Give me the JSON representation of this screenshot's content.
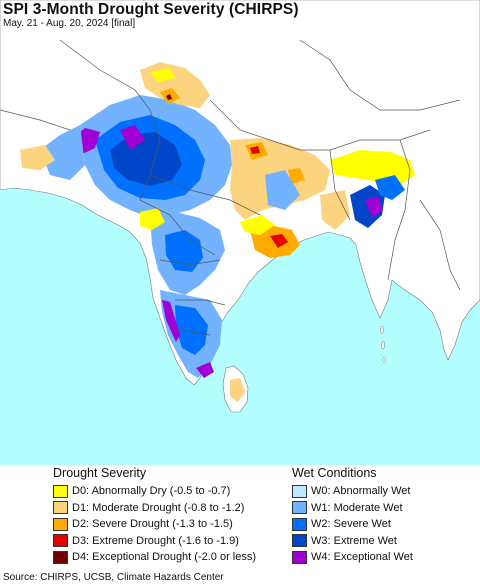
{
  "header": {
    "title": "SPI 3-Month Drought Severity (CHIRPS)",
    "subtitle": "May. 21 - Aug. 20, 2024 [final]"
  },
  "legend": {
    "drought": {
      "heading": "Drought Severity",
      "items": [
        {
          "label": "D0: Abnormally Dry (-0.5 to -0.7)",
          "color": "#ffff00"
        },
        {
          "label": "D1: Moderate Drought (-0.8 to -1.2)",
          "color": "#fcd37f"
        },
        {
          "label": "D2: Severe Drought (-1.3 to -1.5)",
          "color": "#ffaa00"
        },
        {
          "label": "D3: Extreme Drought (-1.6 to -1.9)",
          "color": "#e60000"
        },
        {
          "label": "D4: Exceptional Drought (-2.0 or less)",
          "color": "#730000"
        }
      ]
    },
    "wet": {
      "heading": "Wet Conditions",
      "items": [
        {
          "label": "W0: Abnormally Wet",
          "color": "#bee8ff"
        },
        {
          "label": "W1: Moderate Wet",
          "color": "#73b2ff"
        },
        {
          "label": "W2: Severe Wet",
          "color": "#0070ff"
        },
        {
          "label": "W3: Extreme Wet",
          "color": "#0046c8"
        },
        {
          "label": "W4: Exceptional Wet",
          "color": "#a000d2"
        }
      ]
    }
  },
  "colors": {
    "ocean": "#b3ffff",
    "land": "#ffffff",
    "border": "#555555"
  },
  "footer": {
    "source": "Source: CHIRPS, UCSB, Climate Hazards Center"
  }
}
